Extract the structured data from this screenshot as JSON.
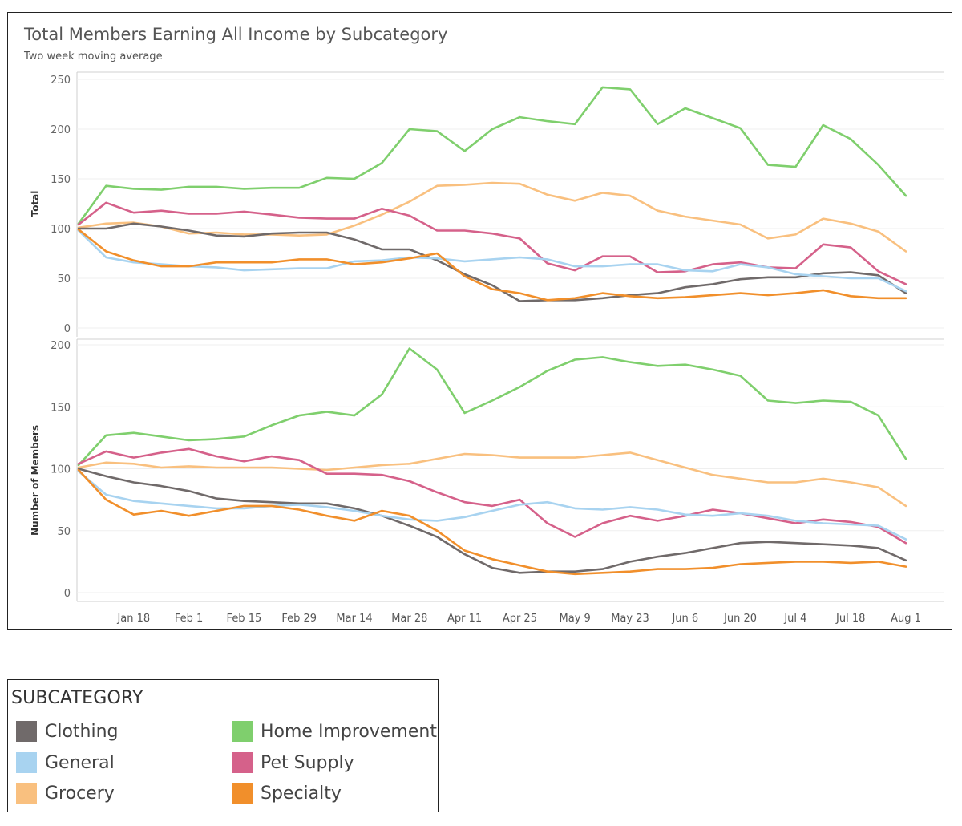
{
  "chart_data": {
    "type": "line",
    "title": "Total Members Earning All Income by Subcategory",
    "subtitle": "Two week moving average",
    "x": [
      "Jan 4",
      "Jan 11",
      "Jan 18",
      "Jan 25",
      "Feb 1",
      "Feb 8",
      "Feb 15",
      "Feb 22",
      "Feb 29",
      "Mar 7",
      "Mar 14",
      "Mar 21",
      "Mar 28",
      "Apr 4",
      "Apr 11",
      "Apr 18",
      "Apr 25",
      "May 2",
      "May 9",
      "May 16",
      "May 23",
      "May 30",
      "Jun 6",
      "Jun 13",
      "Jun 20",
      "Jun 27",
      "Jul 4",
      "Jul 11",
      "Jul 18",
      "Jul 25",
      "Aug 1"
    ],
    "xtick_labels": [
      "Jan 18",
      "Feb 1",
      "Feb 15",
      "Feb 29",
      "Mar 14",
      "Mar 28",
      "Apr 11",
      "Apr 25",
      "May 9",
      "May 23",
      "Jun 6",
      "Jun 20",
      "Jul 4",
      "Jul 18",
      "Aug 1"
    ],
    "xtick_index": [
      2,
      4,
      6,
      8,
      10,
      12,
      14,
      16,
      18,
      20,
      22,
      24,
      26,
      28,
      30
    ],
    "panels": [
      {
        "ylabel": "Total",
        "ylim": [
          0,
          260
        ],
        "yticks": [
          0,
          50,
          100,
          150,
          200,
          250
        ],
        "series": [
          {
            "name": "Home Improvement",
            "values": [
              105,
              143,
              140,
              139,
              142,
              142,
              140,
              141,
              141,
              151,
              150,
              166,
              200,
              198,
              178,
              200,
              212,
              208,
              205,
              242,
              240,
              205,
              221,
              211,
              201,
              164,
              162,
              204,
              190,
              164,
              133
            ]
          },
          {
            "name": "Grocery",
            "values": [
              101,
              105,
              106,
              102,
              95,
              96,
              94,
              94,
              93,
              94,
              103,
              114,
              127,
              143,
              144,
              146,
              145,
              134,
              128,
              136,
              133,
              118,
              112,
              108,
              104,
              90,
              94,
              110,
              105,
              97,
              77
            ]
          },
          {
            "name": "Pet Supply",
            "values": [
              104,
              126,
              116,
              118,
              115,
              115,
              117,
              114,
              111,
              110,
              110,
              120,
              113,
              98,
              98,
              95,
              90,
              65,
              58,
              72,
              72,
              56,
              57,
              64,
              66,
              61,
              60,
              84,
              81,
              57,
              44
            ]
          },
          {
            "name": "Clothing",
            "values": [
              100,
              100,
              105,
              102,
              98,
              93,
              92,
              95,
              96,
              96,
              89,
              79,
              79,
              68,
              54,
              43,
              27,
              28,
              28,
              30,
              33,
              35,
              41,
              44,
              49,
              51,
              51,
              55,
              56,
              53,
              35
            ]
          },
          {
            "name": "General",
            "values": [
              98,
              71,
              66,
              64,
              62,
              61,
              58,
              59,
              60,
              60,
              67,
              68,
              71,
              70,
              67,
              69,
              71,
              69,
              62,
              62,
              64,
              64,
              58,
              57,
              64,
              61,
              54,
              52,
              50,
              50,
              37
            ]
          },
          {
            "name": "Specialty",
            "values": [
              99,
              77,
              68,
              62,
              62,
              66,
              66,
              66,
              69,
              69,
              64,
              66,
              70,
              75,
              52,
              39,
              35,
              28,
              30,
              35,
              32,
              30,
              31,
              33,
              35,
              33,
              35,
              38,
              32,
              30,
              30
            ]
          }
        ]
      },
      {
        "ylabel": "Number of Members",
        "ylim": [
          0,
          205
        ],
        "yticks": [
          0,
          50,
          100,
          150,
          200
        ],
        "series": [
          {
            "name": "Home Improvement",
            "values": [
              103,
              127,
              129,
              126,
              123,
              124,
              126,
              135,
              143,
              146,
              143,
              160,
              197,
              180,
              145,
              155,
              166,
              179,
              188,
              190,
              186,
              183,
              184,
              180,
              175,
              155,
              153,
              155,
              154,
              143,
              108
            ]
          },
          {
            "name": "Grocery",
            "values": [
              101,
              105,
              104,
              101,
              102,
              101,
              101,
              101,
              100,
              99,
              101,
              103,
              104,
              108,
              112,
              111,
              109,
              109,
              109,
              111,
              113,
              107,
              101,
              95,
              92,
              89,
              89,
              92,
              89,
              85,
              70
            ]
          },
          {
            "name": "Pet Supply",
            "values": [
              104,
              114,
              109,
              113,
              116,
              110,
              106,
              110,
              107,
              96,
              96,
              95,
              90,
              81,
              73,
              70,
              75,
              56,
              45,
              56,
              62,
              58,
              62,
              67,
              64,
              60,
              56,
              59,
              57,
              53,
              40
            ]
          },
          {
            "name": "Clothing",
            "values": [
              100,
              94,
              89,
              86,
              82,
              76,
              74,
              73,
              72,
              72,
              68,
              62,
              54,
              45,
              31,
              20,
              16,
              17,
              17,
              19,
              25,
              29,
              32,
              36,
              40,
              41,
              40,
              39,
              38,
              36,
              26
            ]
          },
          {
            "name": "General",
            "values": [
              98,
              79,
              74,
              72,
              70,
              68,
              68,
              70,
              71,
              69,
              66,
              62,
              59,
              58,
              61,
              66,
              71,
              73,
              68,
              67,
              69,
              67,
              63,
              62,
              64,
              62,
              58,
              56,
              55,
              54,
              43
            ]
          },
          {
            "name": "Specialty",
            "values": [
              99,
              75,
              63,
              66,
              62,
              66,
              70,
              70,
              67,
              62,
              58,
              66,
              62,
              50,
              34,
              27,
              22,
              17,
              15,
              16,
              17,
              19,
              19,
              20,
              23,
              24,
              25,
              25,
              24,
              25,
              21
            ]
          }
        ]
      }
    ]
  },
  "legend": {
    "title": "SUBCATEGORY",
    "items": [
      {
        "name": "Clothing",
        "color": "#706a6a"
      },
      {
        "name": "General",
        "color": "#a8d3f0"
      },
      {
        "name": "Grocery",
        "color": "#f9c07f"
      },
      {
        "name": "Home Improvement",
        "color": "#7fcf6d"
      },
      {
        "name": "Pet Supply",
        "color": "#d5618a"
      },
      {
        "name": "Specialty",
        "color": "#f18f2b"
      }
    ]
  },
  "colors": {
    "Clothing": "#706a6a",
    "General": "#a8d3f0",
    "Grocery": "#f9c07f",
    "Home Improvement": "#7fcf6d",
    "Pet Supply": "#d5618a",
    "Specialty": "#f18f2b"
  }
}
